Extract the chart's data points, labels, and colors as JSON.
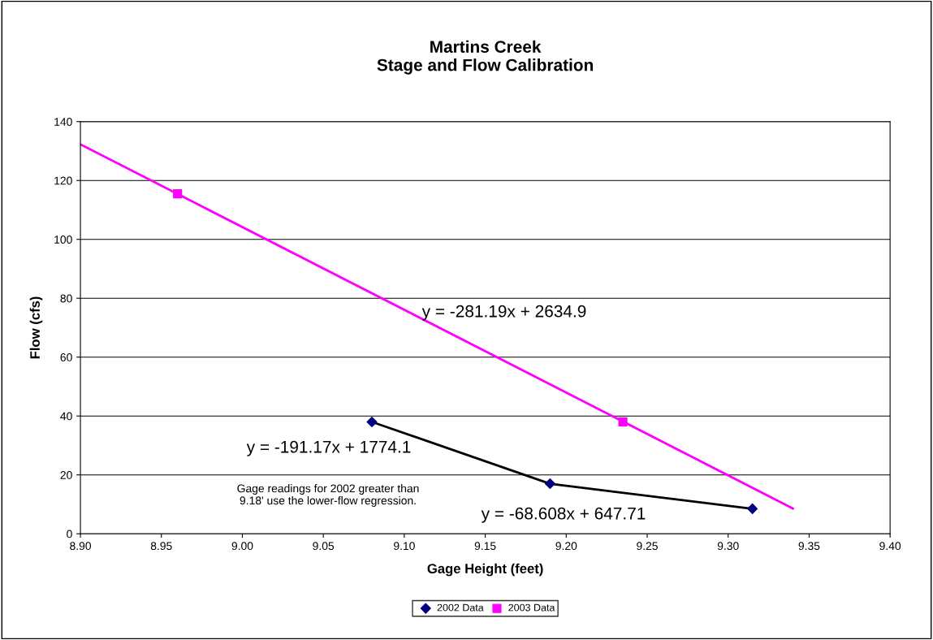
{
  "chart_data": {
    "type": "scatter",
    "title": "Martins Creek\nStage and Flow Calibration",
    "xlabel": "Gage Height (feet)",
    "ylabel": "Flow (cfs)",
    "xlim": [
      8.9,
      9.4
    ],
    "xticks": [
      {
        "value": 8.9,
        "label": "8.90"
      },
      {
        "value": 8.95,
        "label": "8.95"
      },
      {
        "value": 9.0,
        "label": "9.00"
      },
      {
        "value": 9.05,
        "label": "9.05"
      },
      {
        "value": 9.1,
        "label": "9.10"
      },
      {
        "value": 9.15,
        "label": "9.15"
      },
      {
        "value": 9.2,
        "label": "9.20"
      },
      {
        "value": 9.25,
        "label": "9.25"
      },
      {
        "value": 9.3,
        "label": "9.30"
      },
      {
        "value": 9.35,
        "label": "9.35"
      },
      {
        "value": 9.4,
        "label": "9.40"
      }
    ],
    "ylim": [
      0,
      140
    ],
    "yticks": [
      0,
      20,
      40,
      60,
      80,
      100,
      120,
      140
    ],
    "grid": "y",
    "legend": "bottom",
    "series": [
      {
        "type": "line",
        "color": "#ff00ff",
        "x": [
          8.9,
          9.34
        ],
        "values": [
          132.3,
          8.6
        ],
        "marker": "none"
      },
      {
        "type": "line",
        "color": "#000000",
        "x": [
          9.08,
          9.19,
          9.315
        ],
        "values": [
          38,
          17,
          8.5
        ],
        "marker": "none"
      },
      {
        "name": "2002 Data",
        "color": "#000080",
        "x": [
          9.08,
          9.19,
          9.315
        ],
        "values": [
          38,
          17,
          8.5
        ],
        "marker": "diamond"
      },
      {
        "name": "2003 Data",
        "color": "#ff00ff",
        "x": [
          8.96,
          9.235
        ],
        "values": [
          115.5,
          38
        ],
        "marker": "square"
      }
    ],
    "annotations": [
      "y = -281.19x + 2634.9",
      "y = -191.17x + 1774.1",
      "Gage readings for 2002 greater than\n9.18' use the lower-flow regression.",
      "y = -68.608x + 647.71"
    ]
  }
}
